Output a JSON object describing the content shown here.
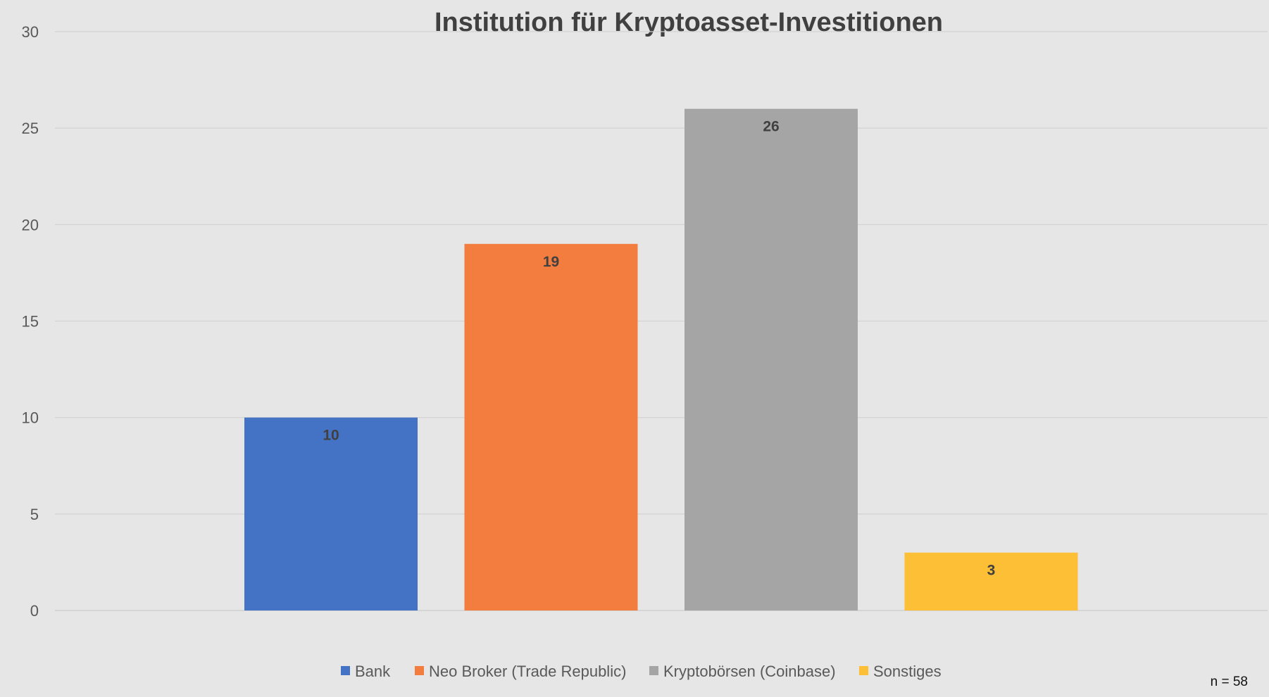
{
  "chart_data": {
    "type": "bar",
    "title": "Institution für Kryptoasset-Investitionen",
    "xlabel": "",
    "ylabel": "",
    "ylim": [
      0,
      30
    ],
    "yticks": [
      0,
      5,
      10,
      15,
      20,
      25,
      30
    ],
    "grid": true,
    "legend_position": "bottom",
    "categories": [
      "Bank",
      "Neo Broker (Trade Republic)",
      "Kryptobörsen (Coinbase)",
      "Sonstiges"
    ],
    "values": [
      10,
      19,
      26,
      3
    ],
    "colors": [
      "#4472c4",
      "#f37d3f",
      "#a5a5a5",
      "#fdbf35"
    ],
    "data_labels": [
      "10",
      "19",
      "26",
      "3"
    ],
    "annotation": "n = 58"
  }
}
